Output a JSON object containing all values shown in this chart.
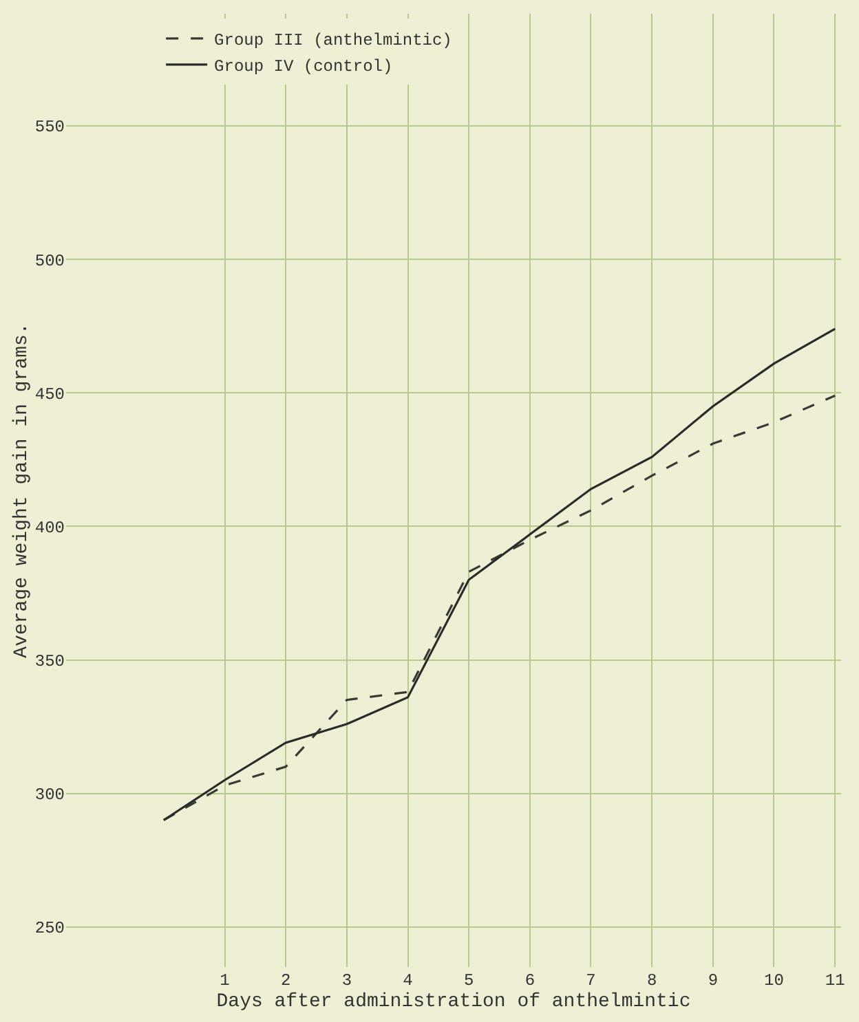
{
  "chart_data": {
    "type": "line",
    "xlabel": "Days after administration of anthelmintic",
    "ylabel": "Average weight gain in grams.",
    "x": [
      0,
      1,
      2,
      3,
      4,
      5,
      6,
      7,
      8,
      9,
      10,
      11
    ],
    "series": [
      {
        "name": "Group III (anthelmintic)",
        "color": "#3a3a34",
        "line_style": "dashed",
        "values": [
          290,
          303,
          310,
          335,
          338,
          383,
          395,
          406,
          419,
          431,
          439,
          449
        ]
      },
      {
        "name": "Group IV (control)",
        "color": "#2a2a26",
        "line_style": "solid",
        "values": [
          290,
          305,
          319,
          326,
          336,
          380,
          397,
          414,
          426,
          445,
          461,
          474
        ]
      }
    ],
    "xlim": [
      -1.6,
      11.1
    ],
    "ylim": [
      235,
      592
    ],
    "xticks": [
      1,
      2,
      3,
      4,
      5,
      6,
      7,
      8,
      9,
      10,
      11
    ],
    "yticks": [
      250,
      300,
      350,
      400,
      450,
      500,
      550
    ],
    "grid": true,
    "legend": "top left",
    "marker": "none"
  }
}
